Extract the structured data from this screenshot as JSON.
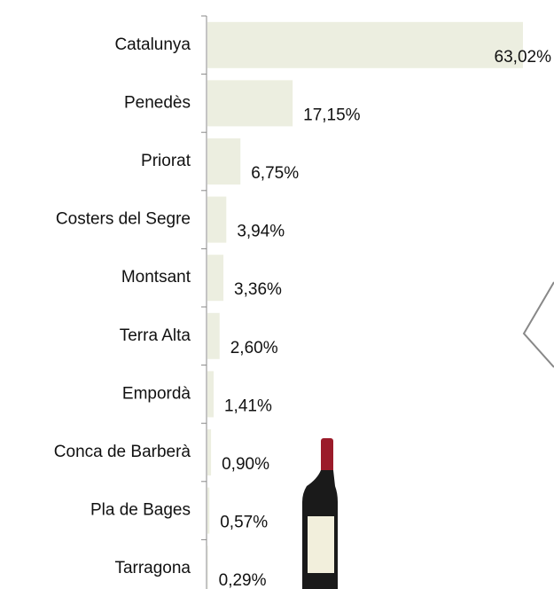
{
  "chart_data": {
    "type": "bar",
    "orientation": "horizontal",
    "categories": [
      "Catalunya",
      "Penedès",
      "Priorat",
      "Costers del Segre",
      "Montsant",
      "Terra Alta",
      "Empordà",
      "Conca de Barberà",
      "Pla de Bages",
      "Tarragona"
    ],
    "values": [
      63.02,
      17.15,
      6.75,
      3.94,
      3.36,
      2.6,
      1.41,
      0.9,
      0.57,
      0.29
    ],
    "value_labels": [
      "63,02%",
      "17,15%",
      "6,75%",
      "3,94%",
      "3,36%",
      "2,60%",
      "1,41%",
      "0,90%",
      "0,57%",
      "0,29%"
    ],
    "color": "#eceee0"
  }
}
